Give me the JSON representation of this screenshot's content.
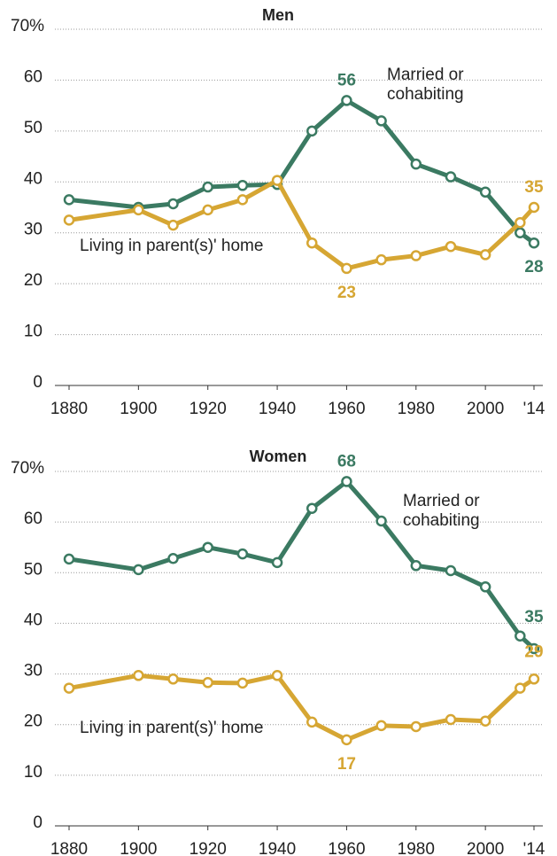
{
  "chart_data": [
    {
      "type": "line",
      "title": "Men",
      "x": [
        1880,
        1900,
        1910,
        1920,
        1930,
        1940,
        1950,
        1960,
        1970,
        1980,
        1990,
        2000,
        2010,
        2014
      ],
      "series": [
        {
          "name": "Married or cohabiting",
          "color": "#3b7a62",
          "values": [
            36.5,
            35,
            35.7,
            39,
            39.3,
            39.5,
            50,
            56,
            52,
            43.5,
            41,
            38,
            30,
            28
          ]
        },
        {
          "name": "Living in parent(s)' home",
          "color": "#d6a633",
          "values": [
            32.5,
            34.5,
            31.5,
            34.5,
            36.5,
            40.3,
            28,
            23,
            24.7,
            25.5,
            27.3,
            25.7,
            32,
            35
          ]
        }
      ],
      "xlim": [
        1880,
        2014
      ],
      "xticks": [
        1880,
        1900,
        1920,
        1940,
        1960,
        1980,
        2000,
        {
          "value": 2014,
          "label": "'14"
        }
      ],
      "ylim": [
        0,
        70
      ],
      "yticks": [
        0,
        10,
        20,
        30,
        40,
        50,
        60,
        {
          "value": 70,
          "label": "70%"
        }
      ],
      "grid": true
    },
    {
      "type": "line",
      "title": "Women",
      "x": [
        1880,
        1900,
        1910,
        1920,
        1930,
        1940,
        1950,
        1960,
        1970,
        1980,
        1990,
        2000,
        2010,
        2014
      ],
      "series": [
        {
          "name": "Married or cohabiting",
          "color": "#3b7a62",
          "values": [
            52.7,
            50.6,
            52.8,
            55,
            53.7,
            52,
            62.7,
            68,
            60.2,
            51.4,
            50.4,
            47.2,
            37.5,
            35
          ]
        },
        {
          "name": "Living in parent(s)' home",
          "color": "#d6a633",
          "values": [
            27.2,
            29.7,
            29,
            28.3,
            28.2,
            29.7,
            20.5,
            17,
            19.8,
            19.6,
            21,
            20.7,
            27.2,
            29
          ]
        }
      ],
      "xlim": [
        1880,
        2014
      ],
      "xticks": [
        1880,
        1900,
        1920,
        1940,
        1960,
        1980,
        2000,
        {
          "value": 2014,
          "label": "'14"
        }
      ],
      "ylim": [
        0,
        70
      ],
      "yticks": [
        0,
        10,
        20,
        30,
        40,
        50,
        60,
        {
          "value": 70,
          "label": "70%"
        }
      ],
      "grid": true
    }
  ]
}
